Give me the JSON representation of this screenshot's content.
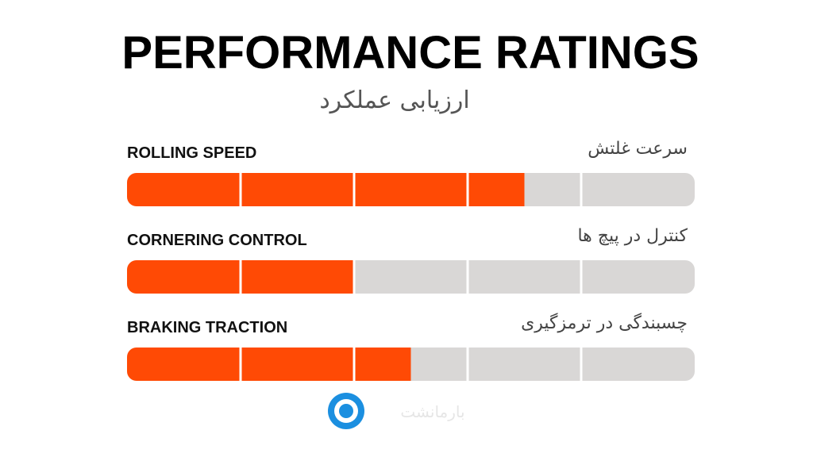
{
  "chart_data": {
    "type": "rating-bar",
    "title": "PERFORMANCE RATINGS",
    "subtitle": "ارزیابی عملکرد",
    "categories": [
      "ROLLING SPEED",
      "CORNERING CONTROL",
      "BRAKING TRACTION"
    ],
    "category_translations": [
      "سرعت غلتش",
      "کنترل در پیچ ها",
      "چسبندگی در ترمزگیری"
    ],
    "values": [
      3.5,
      2,
      2.5
    ],
    "xlim": [
      0,
      5
    ],
    "xticks": [
      1,
      2,
      3,
      4
    ],
    "color": "#ff4a05",
    "track_color": "#d9d7d6"
  },
  "watermark": "بارمانشت"
}
